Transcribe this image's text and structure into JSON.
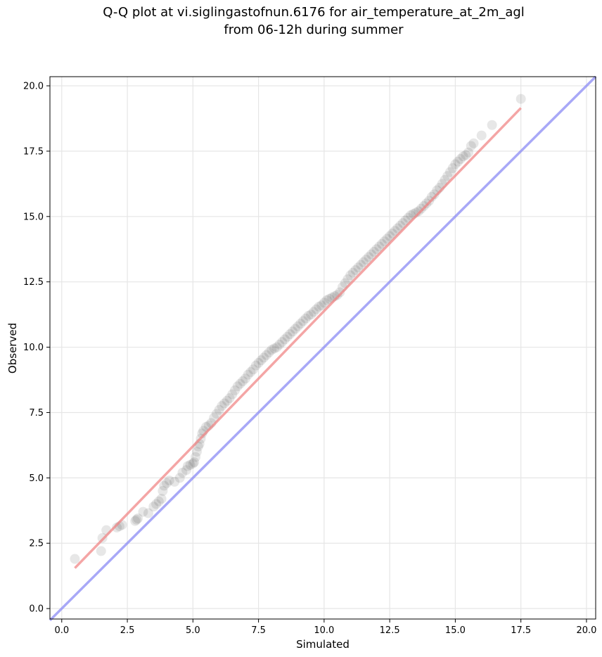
{
  "chart_data": {
    "type": "scatter",
    "title_lines": [
      "Q-Q plot at vi.siglingastofnun.6176 for air_temperature_at_2m_agl",
      "from 06-12h during summer"
    ],
    "xlabel": "Simulated",
    "ylabel": "Observed",
    "xlim": [
      -0.45,
      20.35
    ],
    "ylim": [
      -0.4,
      20.35
    ],
    "xticks": [
      0.0,
      2.5,
      5.0,
      7.5,
      10.0,
      12.5,
      15.0,
      17.5,
      20.0
    ],
    "yticks": [
      0.0,
      2.5,
      5.0,
      7.5,
      10.0,
      12.5,
      15.0,
      17.5,
      20.0
    ],
    "xtick_labels": [
      "0.0",
      "2.5",
      "5.0",
      "7.5",
      "10.0",
      "12.5",
      "15.0",
      "17.5",
      "20.0"
    ],
    "ytick_labels": [
      "0.0",
      "2.5",
      "5.0",
      "7.5",
      "10.0",
      "12.5",
      "15.0",
      "17.5",
      "20.0"
    ],
    "grid": true,
    "colors": {
      "points": "#222222",
      "fit_line": "#f08080",
      "identity_line": "#8c8cf5",
      "grid": "#e6e6e6"
    },
    "quantile_points": {
      "x": [
        0.5,
        1.5,
        1.55,
        1.7,
        2.1,
        2.2,
        2.3,
        2.8,
        2.85,
        2.9,
        3.1,
        3.3,
        3.5,
        3.6,
        3.7,
        3.8,
        3.85,
        3.9,
        4.0,
        4.1,
        4.3,
        4.5,
        4.6,
        4.75,
        4.8,
        4.9,
        5.0,
        5.05,
        5.1,
        5.15,
        5.2,
        5.25,
        5.3,
        5.35,
        5.4,
        5.5,
        5.6,
        5.7,
        5.8,
        5.9,
        6.0,
        6.1,
        6.2,
        6.3,
        6.4,
        6.5,
        6.6,
        6.7,
        6.8,
        6.9,
        7.0,
        7.1,
        7.2,
        7.3,
        7.4,
        7.5,
        7.6,
        7.7,
        7.8,
        7.9,
        8.0,
        8.1,
        8.2,
        8.3,
        8.4,
        8.5,
        8.6,
        8.7,
        8.8,
        8.9,
        9.0,
        9.1,
        9.2,
        9.3,
        9.4,
        9.5,
        9.6,
        9.7,
        9.8,
        9.9,
        10.0,
        10.1,
        10.2,
        10.3,
        10.4,
        10.5,
        10.6,
        10.7,
        10.8,
        10.9,
        11.0,
        11.1,
        11.2,
        11.3,
        11.4,
        11.5,
        11.6,
        11.7,
        11.8,
        11.9,
        12.0,
        12.1,
        12.2,
        12.3,
        12.4,
        12.5,
        12.6,
        12.7,
        12.8,
        12.9,
        13.0,
        13.1,
        13.2,
        13.3,
        13.4,
        13.5,
        13.6,
        13.7,
        13.8,
        13.9,
        14.0,
        14.1,
        14.2,
        14.3,
        14.4,
        14.5,
        14.6,
        14.7,
        14.8,
        14.9,
        15.0,
        15.1,
        15.2,
        15.3,
        15.4,
        15.5,
        15.6,
        15.7,
        16.0,
        16.4,
        17.5
      ],
      "y": [
        1.9,
        2.2,
        2.7,
        3.0,
        3.1,
        3.15,
        3.2,
        3.35,
        3.4,
        3.45,
        3.7,
        3.65,
        3.9,
        4.0,
        4.1,
        4.2,
        4.5,
        4.7,
        4.8,
        4.9,
        4.85,
        5.0,
        5.2,
        5.3,
        5.45,
        5.5,
        5.55,
        5.6,
        5.8,
        6.0,
        6.2,
        6.3,
        6.5,
        6.7,
        6.8,
        6.95,
        7.0,
        7.1,
        7.3,
        7.45,
        7.6,
        7.75,
        7.85,
        7.95,
        8.05,
        8.2,
        8.35,
        8.5,
        8.6,
        8.7,
        8.8,
        8.95,
        9.05,
        9.15,
        9.3,
        9.4,
        9.5,
        9.6,
        9.7,
        9.8,
        9.9,
        9.95,
        10.0,
        10.1,
        10.2,
        10.3,
        10.4,
        10.5,
        10.6,
        10.7,
        10.8,
        10.9,
        11.0,
        11.1,
        11.2,
        11.25,
        11.35,
        11.45,
        11.55,
        11.6,
        11.7,
        11.8,
        11.85,
        11.9,
        11.95,
        12.0,
        12.1,
        12.3,
        12.45,
        12.6,
        12.75,
        12.85,
        12.95,
        13.05,
        13.15,
        13.25,
        13.35,
        13.45,
        13.55,
        13.65,
        13.75,
        13.85,
        13.95,
        14.05,
        14.15,
        14.25,
        14.35,
        14.45,
        14.55,
        14.65,
        14.75,
        14.85,
        14.95,
        15.05,
        15.1,
        15.15,
        15.2,
        15.3,
        15.4,
        15.5,
        15.6,
        15.75,
        15.85,
        16.0,
        16.1,
        16.25,
        16.4,
        16.55,
        16.7,
        16.85,
        17.0,
        17.1,
        17.2,
        17.3,
        17.35,
        17.45,
        17.7,
        17.8,
        18.1,
        18.5,
        19.5
      ]
    },
    "fit_line": {
      "x": [
        0.5,
        17.5
      ],
      "y": [
        1.55,
        19.15
      ]
    },
    "identity_line": {
      "x": [
        -0.45,
        20.35
      ],
      "y": [
        -0.45,
        20.35
      ]
    }
  }
}
